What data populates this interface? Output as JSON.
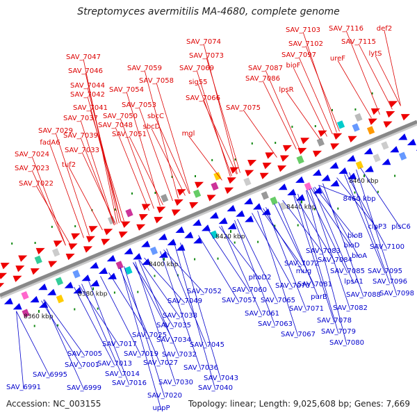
{
  "title": "Streptomyces avermitilis MA-4680, complete genome",
  "footer": {
    "accession": "Accession: NC_003155",
    "stats": "Topology: linear; Length: 9,025,608 bp; Genes: 7,669"
  },
  "colors": {
    "top_strand_labels": "#dd0000",
    "bottom_strand_labels": "#0000cc",
    "top_strand_arrows": "#ee0000",
    "bottom_strand_arrows": "#0000ee",
    "backbone": "#888888",
    "tick_marks": "#118811"
  },
  "ticks": [
    "8360 kbp",
    "8380 kbp",
    "8400 kbp",
    "8420 kbp",
    "8440 kbp",
    "8460 kbp"
  ],
  "top_labels": [
    "SAV_7103",
    "SAV_7116",
    "def2",
    "SAV_7102",
    "SAV_7115",
    "SAV_7074",
    "SAV_7097",
    "ureF",
    "lytS",
    "SAV_7047",
    "SAV_7073",
    "SAV_7059",
    "SAV_7069",
    "SAV_7087",
    "bioF",
    "SAV_7046",
    "SAV_7058",
    "SAV_7086",
    "SAV_7044",
    "sig55",
    "SAV_7054",
    "lpsR",
    "SAV_7042",
    "SAV_7066",
    "SAV_7053",
    "SAV_7075",
    "SAV_7041",
    "SAV_7050",
    "sbcC",
    "SAV_7037",
    "SAV_7048",
    "sbcD",
    "SAV_7039",
    "SAV_7051",
    "mgl",
    "SAV_7029",
    "fadA6",
    "SAV_7033",
    "SAV_7024",
    "tuf2",
    "SAV_7023",
    "SAV_7022"
  ],
  "bottom_labels": [
    "8460 kbp",
    "plsC6",
    "clpP3",
    "bioB",
    "bioD",
    "SAV_7100",
    "bioA",
    "SAV_7083",
    "SAV_7095",
    "SAV_7084",
    "SAV_7072",
    "SAV_7085",
    "SAV_7096",
    "mug",
    "lpsA1",
    "phoD2",
    "SAV_7081",
    "SAV_7088",
    "SAV_7098",
    "SAV_7052",
    "SAV_7060",
    "SAV_7070",
    "purB",
    "SAV_7049",
    "SAV_7057",
    "SAV_7065",
    "SAV_7071",
    "SAV_7082",
    "SAV_7061",
    "SAV_7078",
    "SAV_7038",
    "SAV_7063",
    "SAV_7079",
    "SAV_7035",
    "SAV_7067",
    "SAV_7080",
    "SAV_7025",
    "SAV_7034",
    "SAV_7045",
    "SAV_7017",
    "SAV_7032",
    "SAV_7005",
    "SAV_7019",
    "SAV_7013",
    "SAV_7027",
    "SAV_7036",
    "SAV_6995",
    "SAV_7001",
    "SAV_7043",
    "SAV_7014",
    "SAV_7030",
    "SAV_7040",
    "SAV_7016",
    "SAV_6999",
    "SAV_6991",
    "SAV_7020",
    "uppP"
  ]
}
